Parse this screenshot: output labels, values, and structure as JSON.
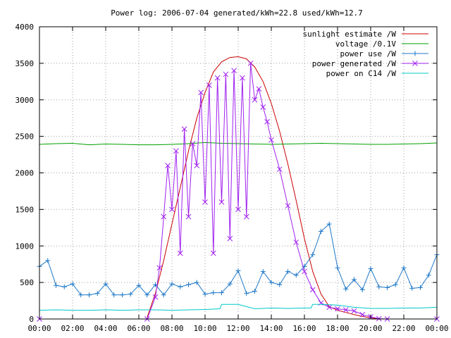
{
  "chart_data": {
    "type": "line",
    "title": "Power log: 2006-07-04 generated/kWh=22.8 used/kWh=12.7",
    "xlabel": "",
    "ylabel": "",
    "xlim": [
      0,
      24
    ],
    "ylim": [
      0,
      4000
    ],
    "x_ticks": [
      "00:00",
      "02:00",
      "04:00",
      "06:00",
      "08:00",
      "10:00",
      "12:00",
      "14:00",
      "16:00",
      "18:00",
      "20:00",
      "22:00",
      "00:00"
    ],
    "y_ticks": [
      0,
      500,
      1000,
      1500,
      2000,
      2500,
      3000,
      3500,
      4000
    ],
    "grid": true,
    "legend_position": "top-right",
    "series": [
      {
        "name": "sunlight estimate /W",
        "color": "#cc0000",
        "marker": "none",
        "x": [
          6.5,
          7,
          7.5,
          8,
          8.5,
          9,
          9.5,
          10,
          10.5,
          11,
          11.5,
          12,
          12.5,
          13,
          13.5,
          14,
          14.5,
          15,
          15.5,
          16,
          16.5,
          17,
          17.5,
          18,
          18.5,
          19,
          19.5,
          20,
          20.5
        ],
        "values": [
          20,
          350,
          800,
          1300,
          1800,
          2300,
          2750,
          3100,
          3380,
          3520,
          3580,
          3590,
          3560,
          3450,
          3250,
          2950,
          2570,
          2120,
          1620,
          1100,
          650,
          340,
          170,
          120,
          90,
          60,
          35,
          15,
          0
        ]
      },
      {
        "name": "voltage /0.1V",
        "color": "#00a000",
        "marker": "none",
        "x": [
          0,
          1,
          2,
          3,
          4,
          5,
          6,
          7,
          8,
          9,
          10,
          11,
          12,
          13,
          14,
          15,
          16,
          17,
          18,
          19,
          20,
          21,
          22,
          23,
          24
        ],
        "values": [
          2390,
          2400,
          2405,
          2385,
          2395,
          2390,
          2385,
          2385,
          2390,
          2400,
          2415,
          2405,
          2400,
          2395,
          2390,
          2395,
          2400,
          2405,
          2400,
          2395,
          2390,
          2390,
          2395,
          2400,
          2410
        ]
      },
      {
        "name": "power use /W",
        "color": "#1e78c8",
        "marker": "plus",
        "x": [
          0,
          0.5,
          1,
          1.5,
          2,
          2.5,
          3,
          3.5,
          4,
          4.5,
          5,
          5.5,
          6,
          6.5,
          7,
          7.5,
          8,
          8.5,
          9,
          9.5,
          10,
          10.5,
          11,
          11.5,
          12,
          12.5,
          13,
          13.5,
          14,
          14.5,
          15,
          15.5,
          16,
          16.5,
          17,
          17.5,
          18,
          18.5,
          19,
          19.5,
          20,
          20.5,
          21,
          21.5,
          22,
          22.5,
          23,
          23.5,
          24
        ],
        "values": [
          720,
          800,
          460,
          440,
          480,
          330,
          330,
          350,
          480,
          330,
          330,
          340,
          460,
          330,
          470,
          330,
          480,
          440,
          470,
          500,
          340,
          360,
          360,
          480,
          660,
          350,
          380,
          650,
          500,
          470,
          650,
          600,
          720,
          880,
          1200,
          1300,
          700,
          410,
          540,
          400,
          690,
          440,
          430,
          470,
          700,
          420,
          430,
          600,
          880
        ]
      },
      {
        "name": "power generated /W",
        "color": "#a020f0",
        "marker": "x",
        "x": [
          0,
          6.5,
          7,
          7.25,
          7.5,
          7.75,
          8,
          8.25,
          8.5,
          8.75,
          9,
          9.25,
          9.5,
          9.75,
          10,
          10.25,
          10.5,
          10.75,
          11,
          11.25,
          11.5,
          11.75,
          12,
          12.25,
          12.5,
          12.75,
          13,
          13.25,
          13.5,
          13.75,
          14,
          14.5,
          15,
          15.5,
          16,
          16.5,
          17,
          17.5,
          18,
          18.5,
          19,
          19.5,
          20,
          20.5,
          21,
          24
        ],
        "values": [
          0,
          0,
          300,
          700,
          1400,
          2100,
          1500,
          2300,
          900,
          2600,
          1400,
          2400,
          2100,
          3100,
          1600,
          3200,
          900,
          3300,
          1600,
          3350,
          1100,
          3400,
          1500,
          3300,
          1400,
          3500,
          3000,
          3150,
          2900,
          2700,
          2450,
          2050,
          1550,
          1050,
          650,
          400,
          220,
          160,
          140,
          125,
          110,
          60,
          30,
          5,
          0,
          0
        ]
      },
      {
        "name": "power on C14 /W",
        "color": "#00c8c8",
        "marker": "none",
        "x": [
          0,
          1,
          2,
          3,
          4,
          5,
          6,
          7,
          8,
          9,
          10,
          10.9,
          11,
          12,
          13,
          14,
          15,
          16,
          16.4,
          16.5,
          17,
          18,
          19,
          20,
          21,
          22,
          23,
          24
        ],
        "values": [
          120,
          125,
          120,
          120,
          125,
          120,
          125,
          125,
          120,
          125,
          130,
          140,
          200,
          200,
          140,
          150,
          145,
          150,
          150,
          200,
          200,
          190,
          160,
          145,
          145,
          150,
          150,
          160
        ]
      }
    ]
  }
}
